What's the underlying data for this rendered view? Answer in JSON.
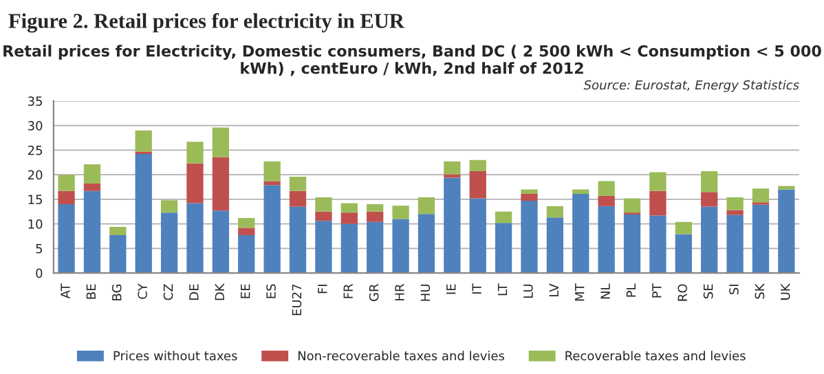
{
  "chart_data": {
    "type": "bar",
    "stacked": true,
    "title": "Figure 2. Retail prices for electricity in EUR",
    "subtitle": "Retail prices for Electricity, Domestic consumers, Band DC ( 2 500 kWh < Consumption < 5 000 kWh) , centEuro / kWh, 2nd half of 2012",
    "annotations": [
      "Source: Eurostat, Energy Statistics"
    ],
    "categories": [
      "AT",
      "BE",
      "BG",
      "CY",
      "CZ",
      "DE",
      "DK",
      "EE",
      "ES",
      "EU27",
      "FI",
      "FR",
      "GR",
      "HR",
      "HU",
      "IE",
      "IT",
      "LT",
      "LU",
      "LV",
      "MT",
      "NL",
      "PL",
      "PT",
      "RO",
      "SE",
      "SI",
      "SK",
      "UK"
    ],
    "series": [
      {
        "name": "Prices without taxes",
        "color": "#4f81bd",
        "values": [
          14.0,
          16.7,
          7.7,
          24.2,
          12.3,
          14.2,
          12.7,
          7.7,
          17.9,
          13.5,
          10.6,
          10.0,
          10.4,
          11.0,
          12.0,
          19.4,
          15.2,
          10.2,
          14.7,
          11.3,
          16.1,
          13.6,
          11.9,
          11.7,
          7.9,
          13.5,
          11.8,
          13.9,
          17.0
        ]
      },
      {
        "name": "Non-recoverable taxes and levies",
        "color": "#c0504d",
        "values": [
          2.7,
          1.5,
          0,
          0.5,
          0,
          8.1,
          10.9,
          1.5,
          0.8,
          3.2,
          1.9,
          2.3,
          2.1,
          0,
          0,
          0.7,
          5.5,
          0,
          1.4,
          0,
          0,
          2.1,
          0.4,
          5.0,
          0,
          3.0,
          1.0,
          0.5,
          0
        ]
      },
      {
        "name": "Recoverable taxes and levies",
        "color": "#9bbb59",
        "values": [
          3.3,
          3.9,
          1.7,
          4.3,
          2.5,
          4.4,
          6.0,
          2.0,
          4.0,
          2.9,
          2.9,
          1.9,
          1.5,
          2.7,
          3.4,
          2.6,
          2.3,
          2.3,
          0.9,
          2.3,
          0.9,
          3.0,
          2.9,
          3.8,
          2.5,
          4.2,
          2.6,
          2.8,
          0.7
        ]
      }
    ],
    "ylim": [
      0,
      35
    ],
    "yticks": [
      0,
      5,
      10,
      15,
      20,
      25,
      30,
      35
    ],
    "grid": "y",
    "legend": "bottom"
  }
}
